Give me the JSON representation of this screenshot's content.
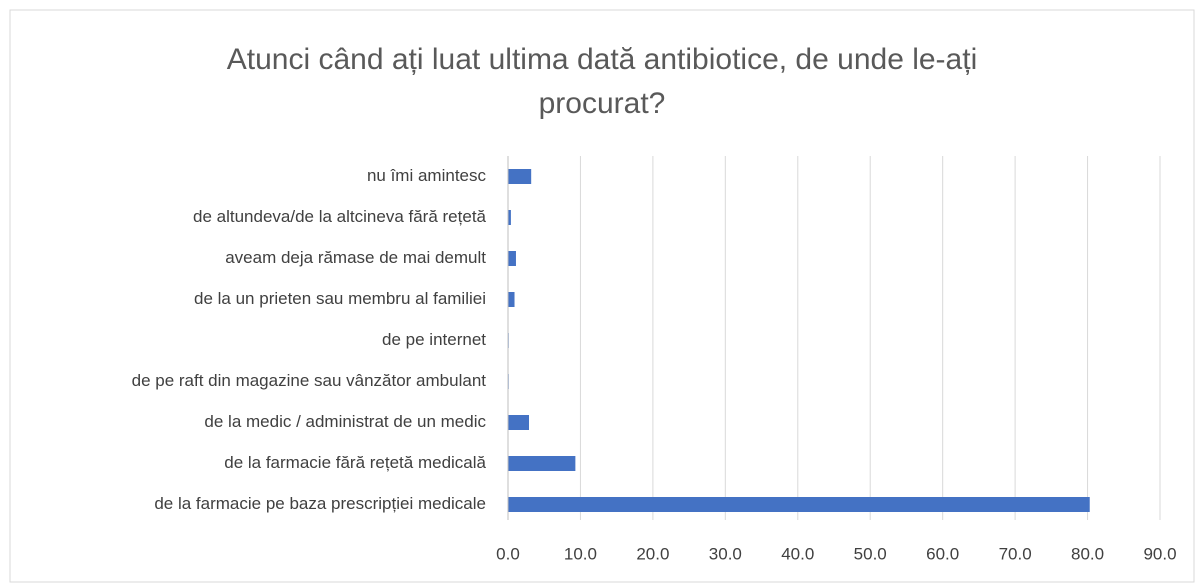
{
  "chart_data": {
    "type": "barh",
    "title": "Atunci când ați luat ultima dată antibiotice, de unde le-ați procurat?",
    "categories": [
      "nu îmi amintesc",
      "de altundeva/de la altcineva fără rețetă",
      "aveam deja rămase de mai demult",
      "de la un prieten sau membru al familiei",
      "de pe internet",
      "de pe raft din magazine sau vânzător ambulant",
      "de la medic / administrat de un medic",
      "de la farmacie fără rețetă medicală",
      "de la farmacie pe baza prescripției medicale"
    ],
    "values": [
      3.2,
      0.4,
      1.1,
      0.9,
      0.1,
      0.1,
      2.9,
      9.3,
      80.3
    ],
    "color": "#4472c4",
    "xlim": [
      0,
      90
    ],
    "xticks": [
      {
        "value": 0,
        "label": "0.0"
      },
      {
        "value": 10,
        "label": "10.0"
      },
      {
        "value": 20,
        "label": "20.0"
      },
      {
        "value": 30,
        "label": "30.0"
      },
      {
        "value": 40,
        "label": "40.0"
      },
      {
        "value": 50,
        "label": "50.0"
      },
      {
        "value": 60,
        "label": "60.0"
      },
      {
        "value": 70,
        "label": "70.0"
      },
      {
        "value": 80,
        "label": "80.0"
      },
      {
        "value": 90,
        "label": "90.0"
      }
    ],
    "grid": true
  }
}
